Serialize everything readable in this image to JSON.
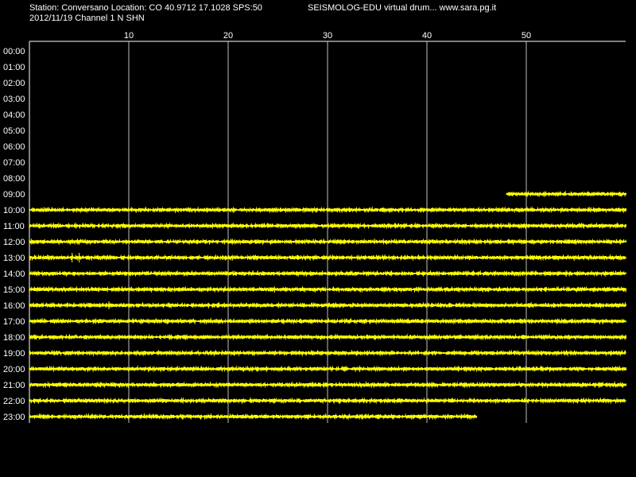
{
  "header": {
    "station_line": "Station: Conversano Location: CO 40.9712 17.1028 SPS:50",
    "date_line": "2012/11/19  Channel 1 N SHN",
    "app_title": "SEISMOLOG-EDU virtual drum... www.sara.pg.it"
  },
  "colors": {
    "background": "#000000",
    "trace": "#ffff00",
    "grid": "#ffffff",
    "text": "#ffffff"
  },
  "chart_data": {
    "type": "line",
    "title": "SEISMOLOG-EDU virtual drum... www.sara.pg.it",
    "xlabel": "",
    "ylabel": "",
    "xlim": [
      0,
      60
    ],
    "x_ticks": [
      10,
      20,
      30,
      40,
      50
    ],
    "grid": true,
    "rows": [
      {
        "label": "00:00",
        "start": null,
        "end": null
      },
      {
        "label": "01:00",
        "start": null,
        "end": null
      },
      {
        "label": "02:00",
        "start": null,
        "end": null
      },
      {
        "label": "03:00",
        "start": null,
        "end": null
      },
      {
        "label": "04:00",
        "start": null,
        "end": null
      },
      {
        "label": "05:00",
        "start": null,
        "end": null
      },
      {
        "label": "06:00",
        "start": null,
        "end": null
      },
      {
        "label": "07:00",
        "start": null,
        "end": null
      },
      {
        "label": "08:00",
        "start": null,
        "end": null
      },
      {
        "label": "09:00",
        "start": 48,
        "end": 60
      },
      {
        "label": "10:00",
        "start": 0,
        "end": 60
      },
      {
        "label": "11:00",
        "start": 0,
        "end": 60
      },
      {
        "label": "12:00",
        "start": 0,
        "end": 60
      },
      {
        "label": "13:00",
        "start": 0,
        "end": 60
      },
      {
        "label": "14:00",
        "start": 0,
        "end": 60
      },
      {
        "label": "15:00",
        "start": 0,
        "end": 60
      },
      {
        "label": "16:00",
        "start": 0,
        "end": 60
      },
      {
        "label": "17:00",
        "start": 0,
        "end": 60
      },
      {
        "label": "18:00",
        "start": 0,
        "end": 60
      },
      {
        "label": "19:00",
        "start": 0,
        "end": 60
      },
      {
        "label": "20:00",
        "start": 0,
        "end": 60
      },
      {
        "label": "21:00",
        "start": 0,
        "end": 60
      },
      {
        "label": "22:00",
        "start": 0,
        "end": 60
      },
      {
        "label": "23:00",
        "start": 0,
        "end": 45
      }
    ]
  }
}
